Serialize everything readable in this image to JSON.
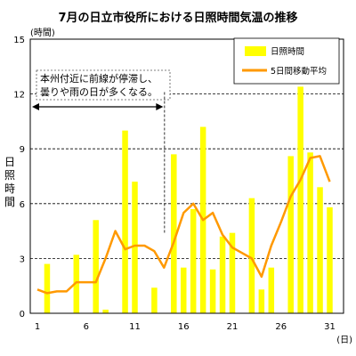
{
  "chart_data": {
    "type": "bar+line",
    "title": "7月の日立市役所における日照時間気温の推移",
    "y_unit": "(時間)",
    "x_unit": "(日)",
    "ylabel": "日照時間",
    "ylim": [
      0,
      15
    ],
    "yticks": [
      0,
      3,
      6,
      9,
      12,
      15
    ],
    "xticks": [
      1,
      6,
      11,
      16,
      21,
      26,
      31
    ],
    "grid": "horizontal-dashed",
    "legend_position": "top-right",
    "annotation": {
      "lines": [
        "本州付近に前線が停滞し、",
        "曇りや雨の日が多くなる。"
      ],
      "from_day": 1,
      "to_day": 14,
      "arrow_y": 11.3
    },
    "series": [
      {
        "name": "日照時間",
        "kind": "bar",
        "color": "#ffff00",
        "x": [
          1,
          2,
          3,
          4,
          5,
          6,
          7,
          8,
          9,
          10,
          11,
          12,
          13,
          14,
          15,
          16,
          17,
          18,
          19,
          20,
          21,
          22,
          23,
          24,
          25,
          26,
          27,
          28,
          29,
          30,
          31
        ],
        "values": [
          0,
          2.7,
          0,
          0,
          3.2,
          0,
          5.1,
          0.2,
          0,
          10.0,
          7.2,
          0,
          1.4,
          0,
          8.7,
          2.5,
          5.7,
          10.2,
          2.4,
          4.2,
          4.4,
          0,
          6.3,
          1.3,
          2.5,
          0,
          8.6,
          12.4,
          8.8,
          6.9,
          5.8
        ]
      },
      {
        "name": "5日間移動平均",
        "kind": "line",
        "color": "#ff9900",
        "x": [
          1,
          2,
          3,
          4,
          5,
          6,
          7,
          8,
          9,
          10,
          11,
          12,
          13,
          14,
          15,
          16,
          17,
          18,
          19,
          20,
          21,
          22,
          23,
          24,
          25,
          26,
          27,
          28,
          29,
          30,
          31
        ],
        "values": [
          1.3,
          1.1,
          1.2,
          1.2,
          1.7,
          1.7,
          1.7,
          3.0,
          4.5,
          3.5,
          3.7,
          3.7,
          3.4,
          2.5,
          3.9,
          5.5,
          6.0,
          5.1,
          5.5,
          4.3,
          3.6,
          3.3,
          3.0,
          2.0,
          3.7,
          5.0,
          6.4,
          7.3,
          8.5,
          8.6,
          7.2
        ]
      }
    ]
  }
}
